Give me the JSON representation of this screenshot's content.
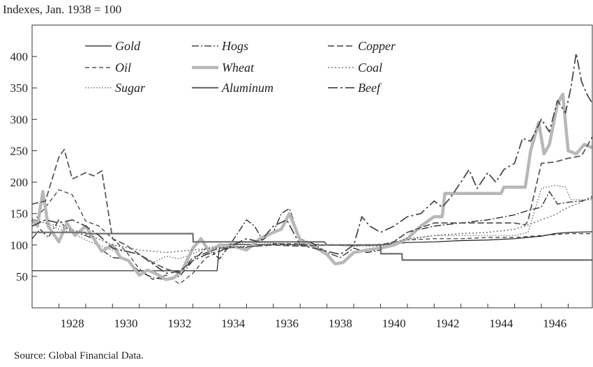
{
  "chart_data": {
    "type": "line",
    "ylabel": "Indexes, Jan. 1938 = 100",
    "source": "Source: Global Financial Data.",
    "ylim": [
      0,
      450
    ],
    "xlim": [
      1927.0,
      1947.9
    ],
    "yticks": [
      50,
      100,
      150,
      200,
      250,
      300,
      350,
      400
    ],
    "xticks": [
      1928,
      1930,
      1932,
      1934,
      1936,
      1938,
      1940,
      1942,
      1944,
      1946
    ],
    "xtick_labels": [
      "1928",
      "1930",
      "1932",
      "1934",
      "1936",
      "1938",
      "1940",
      "1942",
      "1944",
      "1946"
    ],
    "ytick_labels": [
      "50",
      "100",
      "150",
      "200",
      "250",
      "300",
      "350",
      "400"
    ],
    "legend_position": "top-left",
    "series": [
      {
        "name": "Gold",
        "color": "#1a1a1a",
        "dash": "solid",
        "width": 1.2,
        "x": [
          1927.0,
          1933.9,
          1934.0,
          1938,
          1940,
          1941,
          1942,
          1943,
          1944,
          1945,
          1946,
          1946.5,
          1947,
          1947.9
        ],
        "y": [
          59,
          59,
          101,
          100,
          100,
          104,
          105,
          107,
          108,
          110,
          114,
          118,
          120,
          121
        ]
      },
      {
        "name": "Oil",
        "color": "#333333",
        "dash": "6,4",
        "width": 1.2,
        "x": [
          1927.0,
          1927.5,
          1928.0,
          1928.5,
          1929.0,
          1929.5,
          1930.0,
          1930.5,
          1931.0,
          1931.5,
          1932.0,
          1932.5,
          1933.0,
          1933.5,
          1934.0,
          1934.5,
          1935.0,
          1936,
          1937,
          1938,
          1939,
          1940,
          1941,
          1942,
          1943,
          1944,
          1945,
          1946,
          1947,
          1947.9
        ],
        "y": [
          135,
          160,
          188,
          180,
          138,
          130,
          110,
          90,
          62,
          45,
          52,
          38,
          55,
          80,
          90,
          97,
          96,
          102,
          102,
          100,
          99,
          101,
          108,
          110,
          110,
          112,
          112,
          115,
          118,
          118
        ]
      },
      {
        "name": "Sugar",
        "color": "#555555",
        "dash": "1.5,2.5",
        "width": 1.2,
        "x": [
          1927.0,
          1927.5,
          1928.0,
          1928.5,
          1929.0,
          1929.5,
          1930.0,
          1930.5,
          1931.0,
          1931.5,
          1932.0,
          1932.5,
          1933.0,
          1933.5,
          1934.0,
          1935,
          1936,
          1937,
          1938,
          1939,
          1940,
          1941,
          1942,
          1943,
          1944,
          1945,
          1945.5,
          1946,
          1946.5,
          1946.9,
          1947.1,
          1947.5,
          1947.9
        ],
        "y": [
          142,
          135,
          125,
          120,
          108,
          100,
          92,
          90,
          85,
          72,
          82,
          78,
          86,
          95,
          100,
          104,
          103,
          100,
          100,
          98,
          100,
          108,
          115,
          115,
          115,
          115,
          120,
          190,
          195,
          192,
          172,
          172,
          172
        ]
      },
      {
        "name": "Hogs",
        "color": "#222222",
        "dash": "10,3,2,3",
        "width": 1.3,
        "x": [
          1927.0,
          1927.3,
          1927.6,
          1928.0,
          1928.2,
          1928.5,
          1928.8,
          1929.0,
          1929.3,
          1929.5,
          1930.0,
          1930.5,
          1931.0,
          1931.5,
          1932.0,
          1932.5,
          1933.0,
          1933.5,
          1934.0,
          1934.5,
          1935.0,
          1935.3,
          1935.6,
          1936.0,
          1936.3,
          1936.6,
          1937.0,
          1937.5,
          1938.0,
          1938.5,
          1939.0,
          1939.5,
          1940.0,
          1941,
          1942,
          1943,
          1944,
          1945,
          1945.5,
          1946.0,
          1946.3,
          1946.6,
          1947.0,
          1947.5,
          1947.9
        ],
        "y": [
          110,
          125,
          112,
          140,
          130,
          120,
          118,
          115,
          110,
          95,
          80,
          78,
          58,
          48,
          45,
          50,
          75,
          95,
          78,
          108,
          140,
          130,
          108,
          120,
          150,
          158,
          110,
          102,
          88,
          80,
          95,
          88,
          92,
          120,
          130,
          135,
          140,
          148,
          155,
          160,
          185,
          165,
          168,
          170,
          175
        ]
      },
      {
        "name": "Wheat",
        "color": "#b8b8b8",
        "dash": "solid",
        "width": 4.5,
        "x": [
          1927.0,
          1927.2,
          1927.4,
          1927.6,
          1928.0,
          1928.3,
          1928.6,
          1929.0,
          1929.3,
          1929.6,
          1930.0,
          1930.3,
          1930.6,
          1931.0,
          1931.3,
          1931.6,
          1932.0,
          1932.3,
          1932.6,
          1933.0,
          1933.3,
          1933.6,
          1934.0,
          1934.5,
          1935.0,
          1935.5,
          1936.0,
          1936.3,
          1936.6,
          1937.0,
          1937.5,
          1938.0,
          1938.3,
          1938.6,
          1939.0,
          1939.5,
          1940.0,
          1940.5,
          1941.0,
          1941.5,
          1942.0,
          1942.3,
          1942.4,
          1943.0,
          1944.0,
          1944.5,
          1944.6,
          1945.0,
          1945.4,
          1945.6,
          1945.9,
          1946.1,
          1946.3,
          1946.6,
          1946.8,
          1947.0,
          1947.3,
          1947.6,
          1947.9
        ],
        "y": [
          140,
          130,
          185,
          130,
          105,
          135,
          115,
          130,
          110,
          90,
          100,
          80,
          75,
          52,
          60,
          55,
          45,
          48,
          60,
          95,
          110,
          90,
          100,
          98,
          92,
          110,
          120,
          125,
          150,
          108,
          98,
          85,
          70,
          72,
          88,
          92,
          95,
          100,
          110,
          130,
          145,
          145,
          182,
          182,
          182,
          182,
          192,
          192,
          192,
          250,
          295,
          245,
          260,
          325,
          340,
          250,
          245,
          260,
          255
        ]
      },
      {
        "name": "Aluminum",
        "color": "#6e6e6e",
        "dash": "solid",
        "width": 2.2,
        "x": [
          1927.0,
          1929.0,
          1929.01,
          1933.0,
          1933.01,
          1937.9,
          1938.0,
          1940.0,
          1940.01,
          1940.8,
          1940.81,
          1947.9
        ],
        "y": [
          120,
          120,
          118,
          118,
          105,
          105,
          100,
          100,
          86,
          86,
          76,
          76
        ]
      },
      {
        "name": "Copper",
        "color": "#5a5a5a",
        "dash": "9,4",
        "width": 1.8,
        "x": [
          1927.0,
          1927.5,
          1928.0,
          1928.2,
          1928.5,
          1929.0,
          1929.3,
          1929.6,
          1930.0,
          1930.5,
          1931.0,
          1931.5,
          1932.0,
          1932.5,
          1933.0,
          1934,
          1935,
          1936,
          1937,
          1938,
          1939,
          1940,
          1940.5,
          1941.0,
          1942,
          1943,
          1944,
          1945,
          1945.4,
          1945.5,
          1946,
          1946.5,
          1947,
          1947.5,
          1947.9
        ],
        "y": [
          165,
          170,
          240,
          252,
          205,
          215,
          210,
          218,
          110,
          100,
          85,
          72,
          62,
          55,
          80,
          95,
          97,
          100,
          98,
          100,
          100,
          100,
          105,
          120,
          135,
          135,
          135,
          135,
          132,
          138,
          230,
          232,
          238,
          242,
          272
        ]
      },
      {
        "name": "Coal",
        "color": "#777777",
        "dash": "2,3",
        "width": 1.6,
        "x": [
          1927.0,
          1928,
          1929,
          1930,
          1931,
          1932,
          1933,
          1934,
          1935,
          1936,
          1937,
          1938,
          1939,
          1940,
          1941,
          1942,
          1943,
          1944,
          1945,
          1945.5,
          1946,
          1946.5,
          1947,
          1947.5,
          1947.9
        ],
        "y": [
          140,
          130,
          118,
          100,
          92,
          88,
          92,
          96,
          98,
          100,
          100,
          100,
          99,
          98,
          110,
          115,
          118,
          120,
          125,
          132,
          140,
          148,
          160,
          168,
          178
        ]
      },
      {
        "name": "Beef",
        "color": "#4a4a4a",
        "dash": "14,4,3,4",
        "width": 1.8,
        "x": [
          1927.0,
          1927.5,
          1928.0,
          1928.5,
          1929.0,
          1929.5,
          1930.0,
          1930.5,
          1931.0,
          1931.5,
          1932.0,
          1932.5,
          1933.0,
          1933.5,
          1934.0,
          1934.5,
          1935.0,
          1935.5,
          1936.0,
          1936.5,
          1937.0,
          1937.5,
          1938.0,
          1938.5,
          1939.0,
          1939.3,
          1939.6,
          1940.0,
          1940.5,
          1941.0,
          1941.5,
          1942.0,
          1942.3,
          1942.6,
          1943.0,
          1943.3,
          1943.6,
          1944.0,
          1944.3,
          1944.6,
          1945.0,
          1945.3,
          1945.6,
          1946.0,
          1946.3,
          1946.6,
          1946.9,
          1947.1,
          1947.3,
          1947.5,
          1947.7,
          1947.9
        ],
        "y": [
          130,
          140,
          135,
          140,
          130,
          115,
          95,
          90,
          85,
          70,
          55,
          58,
          75,
          85,
          90,
          100,
          110,
          105,
          130,
          140,
          100,
          95,
          90,
          85,
          100,
          145,
          130,
          120,
          130,
          145,
          150,
          170,
          160,
          175,
          200,
          220,
          190,
          215,
          200,
          220,
          230,
          270,
          265,
          300,
          280,
          330,
          310,
          350,
          405,
          360,
          340,
          325
        ]
      }
    ]
  }
}
